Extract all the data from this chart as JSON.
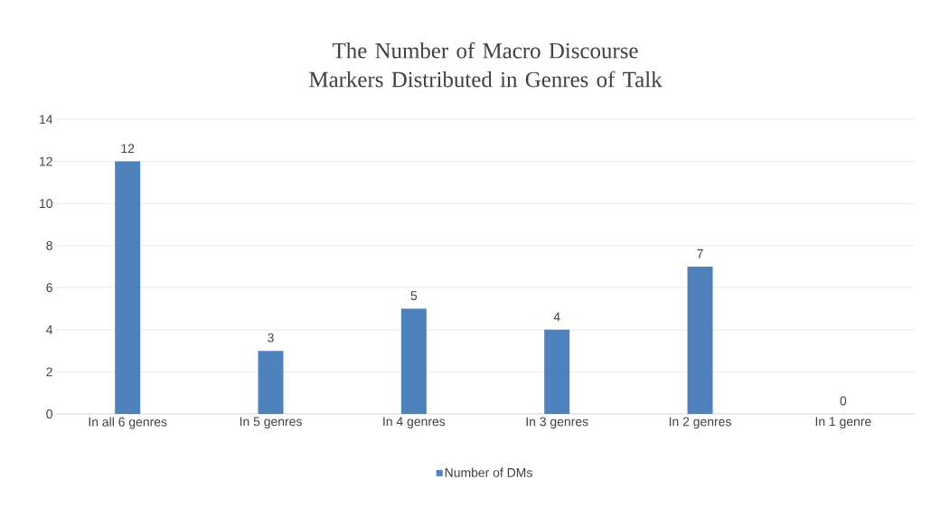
{
  "chart_data": {
    "type": "bar",
    "title": "The Number of Macro Discourse Markers Distributed in Genres of Talk",
    "categories": [
      "In all 6 genres",
      "In 5 genres",
      "In 4 genres",
      "In 3 genres",
      "In 2 genres",
      "In 1 genre"
    ],
    "series": [
      {
        "name": "Number of DMs",
        "color": "#4f81bd",
        "values": [
          12,
          3,
          5,
          4,
          7,
          0
        ]
      }
    ],
    "ylim": [
      0,
      14
    ],
    "yticks": [
      0,
      2,
      4,
      6,
      8,
      10,
      12,
      14
    ],
    "grid": "y",
    "legend": "bottom",
    "data_labels": true
  }
}
